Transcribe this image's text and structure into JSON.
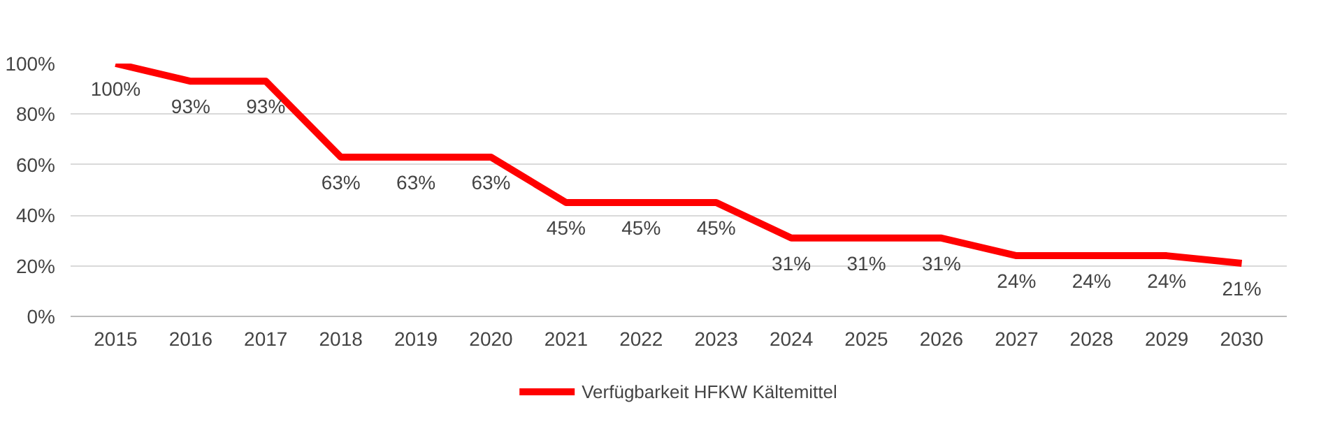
{
  "chart_data": {
    "type": "line",
    "categories": [
      "2015",
      "2016",
      "2017",
      "2018",
      "2019",
      "2020",
      "2021",
      "2022",
      "2023",
      "2024",
      "2025",
      "2026",
      "2027",
      "2028",
      "2029",
      "2030"
    ],
    "series": [
      {
        "name": "Verfügbarkeit HFKW Kältemittel",
        "color": "#ff0000",
        "values": [
          100,
          93,
          93,
          63,
          63,
          63,
          45,
          45,
          45,
          31,
          31,
          31,
          24,
          24,
          24,
          21
        ],
        "value_labels": [
          "100%",
          "93%",
          "93%",
          "63%",
          "63%",
          "63%",
          "45%",
          "45%",
          "45%",
          "31%",
          "31%",
          "31%",
          "24%",
          "24%",
          "24%",
          "21%"
        ]
      }
    ],
    "ylim": [
      0,
      100
    ],
    "yticks": [
      {
        "value": 0,
        "label": "0%"
      },
      {
        "value": 20,
        "label": "20%"
      },
      {
        "value": 40,
        "label": "40%"
      },
      {
        "value": 60,
        "label": "60%"
      },
      {
        "value": 80,
        "label": "80%"
      },
      {
        "value": 100,
        "label": "100%"
      }
    ],
    "grid": "y",
    "legend": "bottom",
    "marker": "none",
    "line_style": "solid"
  }
}
